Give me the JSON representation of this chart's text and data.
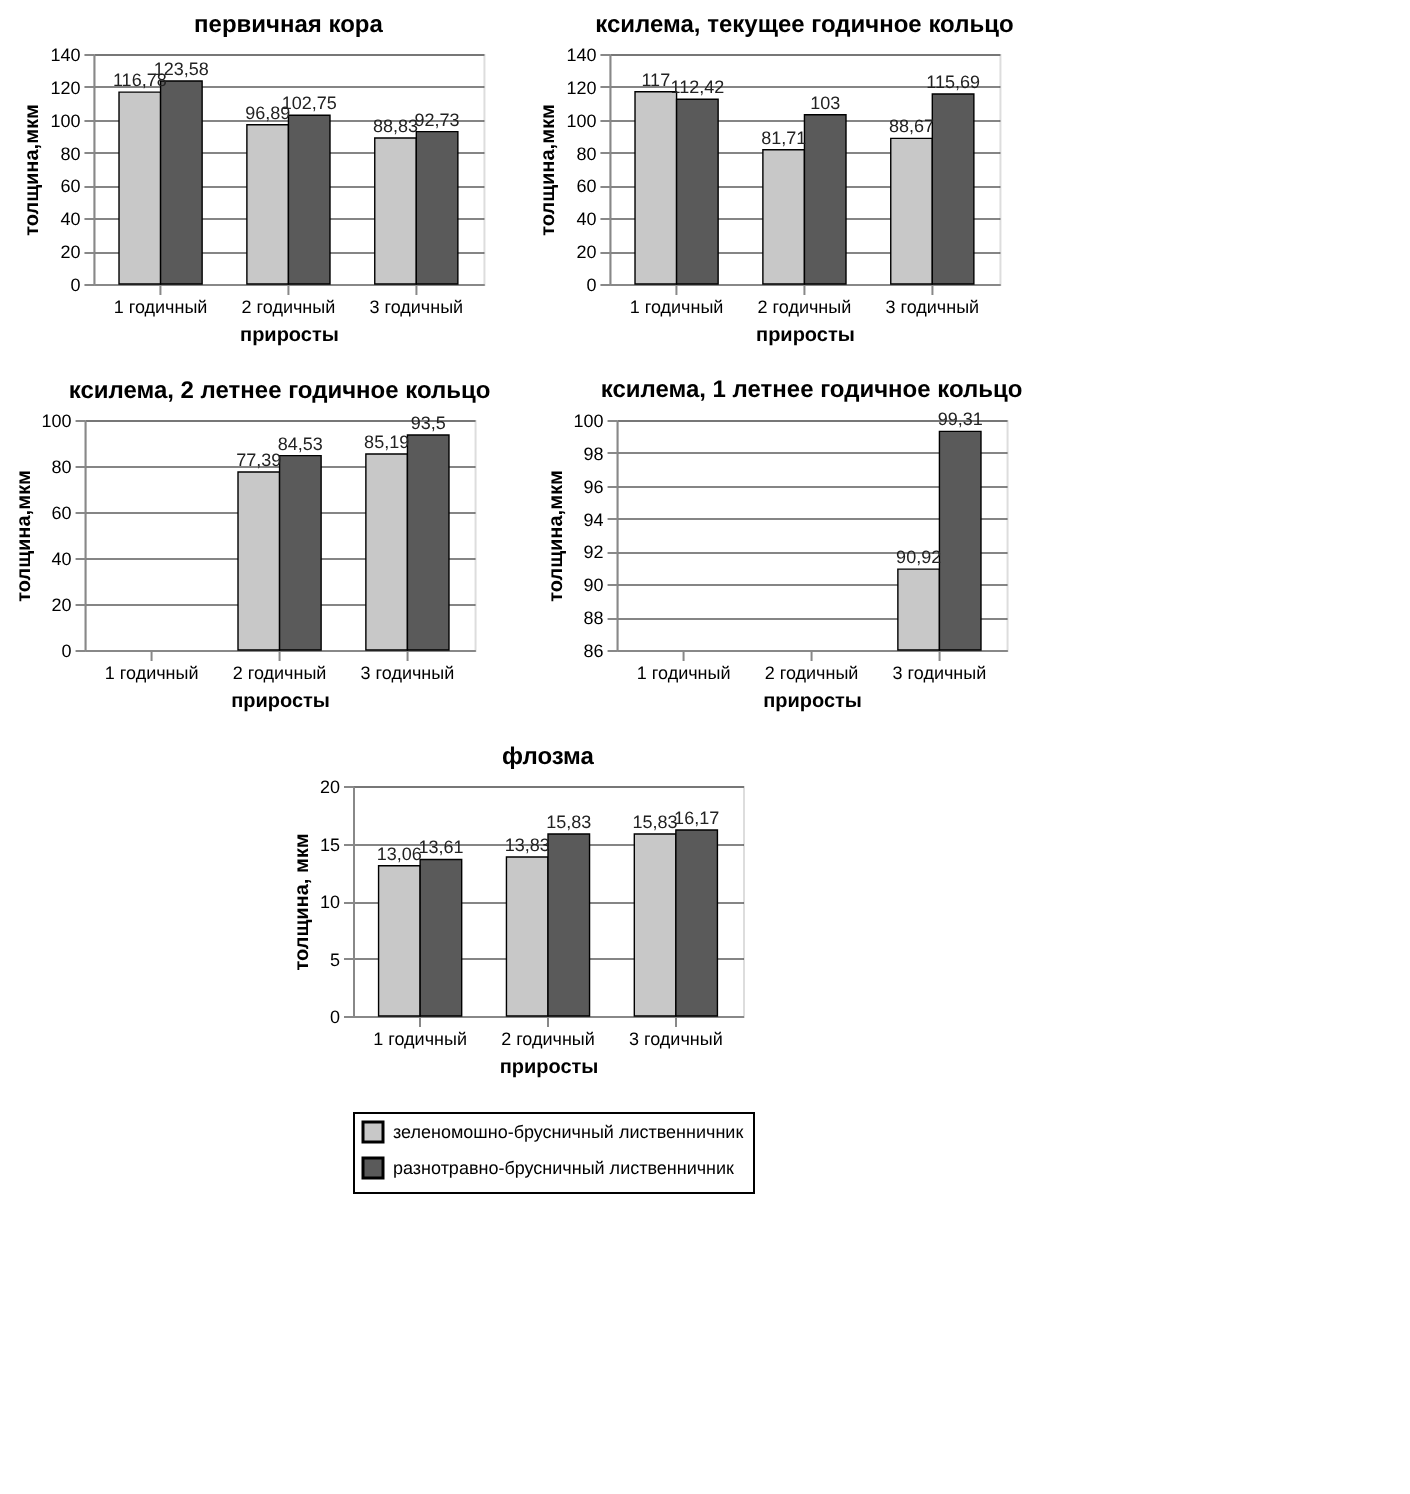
{
  "chart_data": [
    {
      "type": "bar",
      "title": "первичная кора",
      "xlabel": "приросты",
      "ylabel": "толщина,мкм",
      "categories": [
        "1 годичный",
        "2 годичный",
        "3 годичный"
      ],
      "ylim": [
        0,
        140
      ],
      "yticks": [
        0,
        20,
        40,
        60,
        80,
        100,
        120,
        140
      ],
      "grid": "y",
      "legend": false,
      "series": [
        {
          "color": "#c8c8c8",
          "values": [
            116.78,
            96.89,
            88.83
          ],
          "value_labels": [
            "116,78",
            "96,89",
            "88,83"
          ]
        },
        {
          "color": "#5a5a5a",
          "values": [
            123.58,
            102.75,
            92.73
          ],
          "value_labels": [
            "123,58",
            "102,75",
            "92,73"
          ]
        }
      ]
    },
    {
      "type": "bar",
      "title": "ксилема, текущее годичное кольцо",
      "xlabel": "приросты",
      "ylabel": "толщина,мкм",
      "categories": [
        "1 годичный",
        "2 годичный",
        "3 годичный"
      ],
      "ylim": [
        0,
        140
      ],
      "yticks": [
        0,
        20,
        40,
        60,
        80,
        100,
        120,
        140
      ],
      "grid": "y",
      "legend": false,
      "series": [
        {
          "color": "#c8c8c8",
          "values": [
            117,
            81.71,
            88.67
          ],
          "value_labels": [
            "117",
            "81,71",
            "88,67"
          ]
        },
        {
          "color": "#5a5a5a",
          "values": [
            112.42,
            103,
            115.69
          ],
          "value_labels": [
            "112,42",
            "103",
            "115,69"
          ]
        }
      ]
    },
    {
      "type": "bar",
      "title": "ксилема, 2 летнее годичное кольцо",
      "xlabel": "приросты",
      "ylabel": "толщина,мкм",
      "categories": [
        "1 годичный",
        "2 годичный",
        "3 годичный"
      ],
      "ylim": [
        0,
        100
      ],
      "yticks": [
        0,
        20,
        40,
        60,
        80,
        100
      ],
      "grid": "y",
      "legend": false,
      "series": [
        {
          "color": "#c8c8c8",
          "values": [
            null,
            77.39,
            85.19
          ],
          "value_labels": [
            null,
            "77,39",
            "85,19"
          ]
        },
        {
          "color": "#5a5a5a",
          "values": [
            null,
            84.53,
            93.5
          ],
          "value_labels": [
            null,
            "84,53",
            "93,5"
          ]
        }
      ]
    },
    {
      "type": "bar",
      "title": "ксилема, 1 летнее годичное кольцо",
      "xlabel": "приросты",
      "ylabel": "толщина,мкм",
      "categories": [
        "1 годичный",
        "2 годичный",
        "3 годичный"
      ],
      "ylim": [
        86,
        100
      ],
      "yticks": [
        86,
        88,
        90,
        92,
        94,
        96,
        98,
        100
      ],
      "grid": "y",
      "legend": false,
      "series": [
        {
          "color": "#c8c8c8",
          "values": [
            null,
            null,
            90.92
          ],
          "value_labels": [
            null,
            null,
            "90,92"
          ]
        },
        {
          "color": "#5a5a5a",
          "values": [
            null,
            null,
            99.31
          ],
          "value_labels": [
            null,
            null,
            "99,31"
          ]
        }
      ]
    },
    {
      "type": "bar",
      "title": "флозма",
      "xlabel": "приросты",
      "ylabel": "толщина, мкм",
      "categories": [
        "1 годичный",
        "2 годичный",
        "3 годичный"
      ],
      "ylim": [
        0,
        20
      ],
      "yticks": [
        0,
        5,
        10,
        15,
        20
      ],
      "grid": "y",
      "legend": "bottom",
      "series": [
        {
          "name": "зеленомошно-брусничный лиственничник",
          "color": "#c8c8c8",
          "values": [
            13.06,
            13.83,
            15.83
          ],
          "value_labels": [
            "13,06",
            "13,83",
            "15,83"
          ]
        },
        {
          "name": "разнотравно-брусничный лиственничник",
          "color": "#5a5a5a",
          "values": [
            13.61,
            15.83,
            16.17
          ],
          "value_labels": [
            "13,61",
            "15,83",
            "16,17"
          ]
        }
      ]
    }
  ]
}
